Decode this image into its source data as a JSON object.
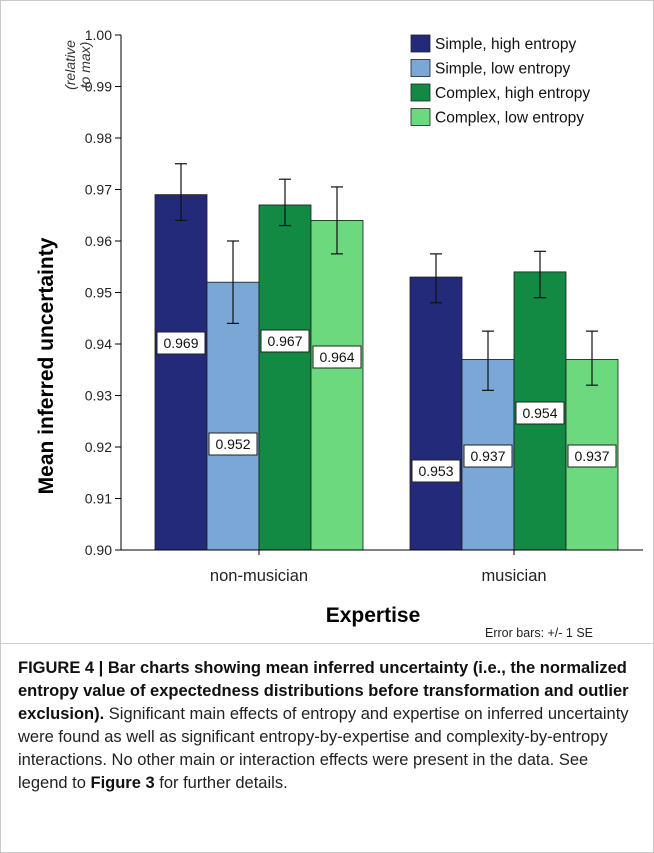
{
  "chart_data": {
    "type": "bar",
    "categories": [
      "non-musician",
      "musician"
    ],
    "series": [
      {
        "name": "Simple, high entropy",
        "color": "#232a7a",
        "values": [
          0.969,
          0.953
        ],
        "se_low": [
          0.964,
          0.948
        ],
        "se_high": [
          0.975,
          0.9575
        ]
      },
      {
        "name": "Simple, low entropy",
        "color": "#7ba7d6",
        "values": [
          0.952,
          0.937
        ],
        "se_low": [
          0.944,
          0.931
        ],
        "se_high": [
          0.96,
          0.9425
        ]
      },
      {
        "name": "Complex, high entropy",
        "color": "#138a44",
        "values": [
          0.967,
          0.954
        ],
        "se_low": [
          0.963,
          0.949
        ],
        "se_high": [
          0.972,
          0.958
        ]
      },
      {
        "name": "Complex, low entropy",
        "color": "#6cd97e",
        "values": [
          0.964,
          0.937
        ],
        "se_low": [
          0.9575,
          0.932
        ],
        "se_high": [
          0.9705,
          0.9425
        ]
      }
    ],
    "value_labels": [
      [
        "0.969",
        "0.953"
      ],
      [
        "0.952",
        "0.937"
      ],
      [
        "0.967",
        "0.954"
      ],
      [
        "0.964",
        "0.937"
      ]
    ],
    "ylim": [
      0.9,
      1.0
    ],
    "yticks": [
      "0.90",
      "0.91",
      "0.92",
      "0.93",
      "0.94",
      "0.95",
      "0.96",
      "0.97",
      "0.98",
      "0.99",
      "1.00"
    ],
    "ylabel": "Mean inferred uncertainty",
    "ylabel_note": [
      "(relative",
      "to max)"
    ],
    "xlabel": "Expertise",
    "note": "Error bars: +/- 1 SE",
    "legend_position": "top-right",
    "grid": false
  },
  "caption": {
    "label": "FIGURE 4 | ",
    "title": "Bar charts showing mean inferred uncertainty (i.e., the normalized entropy value of expectedness distributions before transformation and outlier exclusion).",
    "body_1": " Significant main effects of entropy and expertise on inferred uncertainty were found as well as significant entropy-by-expertise and complexity-by-entropy interactions. No other main or interaction effects were present in the data. See legend to ",
    "figure_ref": "Figure 3",
    "body_2": " for further details."
  }
}
